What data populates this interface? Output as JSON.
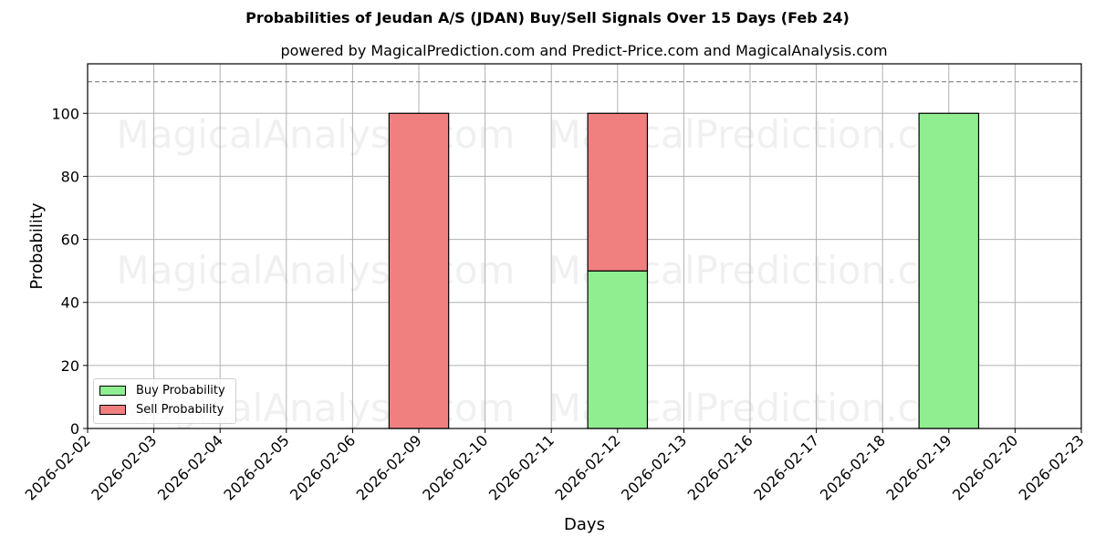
{
  "chart_data": {
    "type": "bar",
    "stacked": true,
    "title": "Probabilities of Jeudan A/S (JDAN) Buy/Sell Signals Over 15 Days (Feb 24)",
    "subtitle": "powered by MagicalPrediction.com and Predict-Price.com and MagicalAnalysis.com",
    "xlabel": "Days",
    "ylabel": "Probability",
    "categories": [
      "2026-02-02",
      "2026-02-03",
      "2026-02-04",
      "2026-02-05",
      "2026-02-06",
      "2026-02-09",
      "2026-02-10",
      "2026-02-11",
      "2026-02-12",
      "2026-02-13",
      "2026-02-16",
      "2026-02-17",
      "2026-02-18",
      "2026-02-19",
      "2026-02-20",
      "2026-02-23"
    ],
    "series": [
      {
        "name": "Buy Probability",
        "color": "#90ee90",
        "values": [
          0,
          0,
          0,
          0,
          0,
          0,
          0,
          0,
          50,
          0,
          0,
          0,
          0,
          100,
          0,
          0
        ]
      },
      {
        "name": "Sell Probability",
        "color": "#f08080",
        "values": [
          0,
          0,
          0,
          0,
          0,
          100,
          0,
          0,
          50,
          0,
          0,
          0,
          0,
          0,
          0,
          0
        ]
      }
    ],
    "yticks": [
      0,
      20,
      40,
      60,
      80,
      100
    ],
    "ylim": [
      0,
      115.7
    ],
    "reference_line": {
      "y": 110,
      "style": "dashed",
      "color": "#808080"
    },
    "grid": true,
    "legend_position": "lower left",
    "watermarks": [
      "MagicalAnalysis.com",
      "MagicalPrediction.com"
    ]
  }
}
